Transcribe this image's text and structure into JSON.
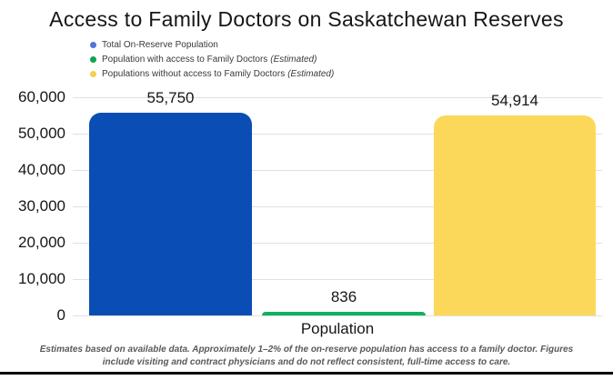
{
  "title": "Access to Family Doctors on Saskatchewan Reserves",
  "legend": {
    "items": [
      {
        "label": "Total On-Reserve Population",
        "suffix": "",
        "color": "#5571de"
      },
      {
        "label": "Population with access to Family Doctors",
        "suffix": "(Estimated)",
        "color": "#0ba550"
      },
      {
        "label": "Populations without access to Family Doctors",
        "suffix": "(Estimated)",
        "color": "#f3d04e"
      }
    ]
  },
  "chart_data": {
    "type": "bar",
    "title": "Access to Family Doctors on Saskatchewan Reserves",
    "categories": [
      "Total On-Reserve Population",
      "Population with access to Family Doctors (Estimated)",
      "Populations without access to Family Doctors (Estimated)"
    ],
    "values": [
      55750,
      836,
      54914
    ],
    "value_labels": [
      "55,750",
      "836",
      "54,914"
    ],
    "bar_colors": [
      "#0a4db4",
      "#10b25e",
      "#fbd85a"
    ],
    "xlabel": "Population",
    "ylabel": "",
    "ylim": [
      0,
      60000
    ],
    "yticks": [
      0,
      10000,
      20000,
      30000,
      40000,
      50000,
      60000
    ],
    "ytick_labels": [
      "0",
      "10,000",
      "20,000",
      "30,000",
      "40,000",
      "50,000",
      "60,000"
    ],
    "grid": true,
    "legend_position": "top-left"
  },
  "xaxis_label": "Population",
  "footnote": "Estimates based on available data. Approximately 1–2% of the on-reserve population has access to a family doctor. Figures include visiting and contract physicians and do not reflect consistent, full-time access to care."
}
